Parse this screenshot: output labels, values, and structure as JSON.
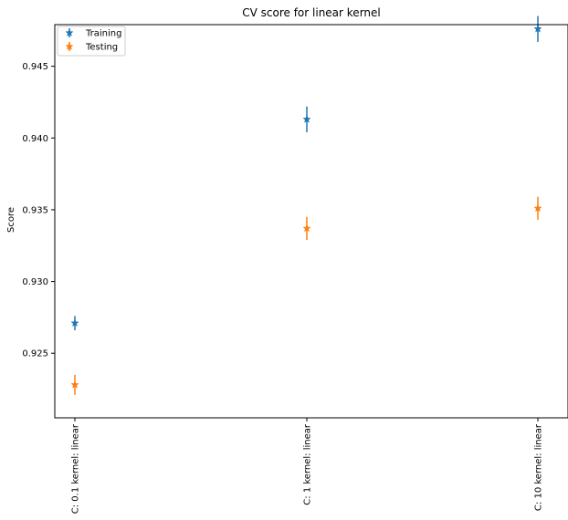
{
  "chart_data": {
    "type": "scatter",
    "title": "CV score for linear kernel",
    "xlabel": "",
    "ylabel": "Score",
    "categories": [
      "C: 0.1 kernel: linear",
      "C: 1 kernel: linear",
      "C: 10 kernel: linear"
    ],
    "ylim": [
      0.9205,
      0.9479
    ],
    "yticks": [
      "0.925",
      "0.930",
      "0.935",
      "0.940",
      "0.945"
    ],
    "grid": false,
    "legend": "top-left",
    "series": [
      {
        "name": "Training",
        "color": "#1f77b4",
        "marker": "star",
        "values": [
          0.9271,
          0.9413,
          0.9476
        ],
        "errors": [
          0.0005,
          0.0009,
          0.0009
        ]
      },
      {
        "name": "Testing",
        "color": "#ff7f0e",
        "marker": "star",
        "values": [
          0.9228,
          0.9337,
          0.9351
        ],
        "errors": [
          0.0007,
          0.0008,
          0.0008
        ]
      }
    ]
  }
}
